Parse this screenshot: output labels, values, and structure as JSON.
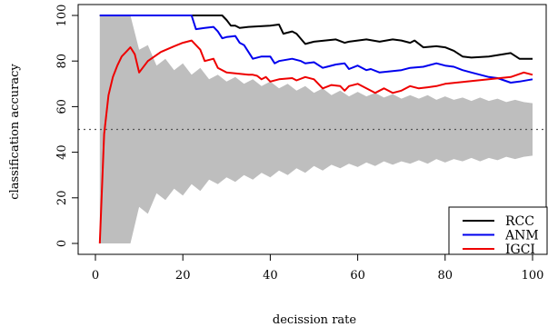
{
  "chart_data": {
    "type": "line",
    "xlabel": "decission rate",
    "ylabel": "classification accuracy",
    "xlim": [
      0,
      100
    ],
    "ylim": [
      0,
      100
    ],
    "x_ticks": [
      0,
      20,
      40,
      60,
      80,
      100
    ],
    "y_ticks": [
      0,
      20,
      40,
      60,
      80,
      100
    ],
    "grid": false,
    "legend_position": "bottom-right",
    "reference_line": {
      "y": 50,
      "style": "dotted",
      "color": "#555555"
    },
    "band": {
      "color": "#bebebe",
      "x": [
        1,
        2,
        4,
        6,
        7,
        8,
        10,
        12,
        14,
        16,
        18,
        20,
        22,
        24,
        26,
        28,
        30,
        32,
        34,
        36,
        38,
        40,
        42,
        44,
        46,
        48,
        50,
        52,
        54,
        56,
        58,
        60,
        62,
        64,
        66,
        68,
        70,
        72,
        74,
        76,
        78,
        80,
        82,
        84,
        86,
        88,
        90,
        92,
        94,
        96,
        98,
        100
      ],
      "upper": [
        100,
        100,
        100,
        100,
        100,
        100,
        85,
        87,
        78,
        81,
        76,
        79,
        74,
        77,
        72,
        74,
        71,
        73,
        70,
        72,
        69,
        71,
        68,
        70,
        67,
        69,
        66,
        68,
        65,
        67,
        64.5,
        66.5,
        64.5,
        66,
        64,
        65.5,
        63.5,
        65,
        63.5,
        65,
        63,
        64.5,
        63,
        64,
        62.5,
        64,
        62.5,
        63.5,
        62,
        63,
        62,
        61.5
      ],
      "lower": [
        0,
        0,
        0,
        0,
        0,
        0,
        16,
        13,
        22,
        19,
        24,
        21,
        26,
        23,
        28,
        26,
        29,
        27,
        30,
        28,
        31,
        29,
        32,
        30,
        33,
        31,
        34,
        32,
        34.5,
        33,
        35,
        33.5,
        35.5,
        34,
        36,
        34.5,
        36,
        35,
        36.5,
        35,
        37,
        35.5,
        37,
        36,
        37.5,
        36,
        37.5,
        36.5,
        38,
        37,
        38,
        38.5
      ]
    },
    "series": [
      {
        "name": "RCC",
        "color": "#000000",
        "x": [
          1,
          10,
          20,
          29,
          30,
          31,
          32,
          33,
          35,
          40,
          42,
          43,
          45,
          46,
          48,
          50,
          55,
          57,
          58,
          62,
          65,
          68,
          70,
          72,
          73,
          75,
          78,
          80,
          82,
          84,
          86,
          90,
          95,
          97,
          100
        ],
        "y": [
          100,
          100,
          100,
          100,
          98,
          95.5,
          95.5,
          94.5,
          95,
          95.5,
          96,
          92,
          93,
          92,
          87.5,
          88.5,
          89.5,
          88,
          88.5,
          89.5,
          88.5,
          89.5,
          89,
          88,
          89,
          86,
          86.5,
          86,
          84.5,
          82,
          81.5,
          82,
          83.5,
          81,
          81
        ]
      },
      {
        "name": "ANM",
        "color": "#0000ee",
        "x": [
          1,
          10,
          20,
          22,
          23,
          25,
          27,
          28,
          29,
          30,
          32,
          33,
          34,
          35,
          36,
          38,
          40,
          41,
          42,
          45,
          47,
          48,
          50,
          52,
          53,
          55,
          57,
          58,
          60,
          62,
          63,
          65,
          70,
          72,
          75,
          78,
          80,
          82,
          84,
          86,
          88,
          90,
          92,
          95,
          97,
          100
        ],
        "y": [
          100,
          100,
          100,
          100,
          94,
          94.5,
          95,
          93,
          90,
          90.5,
          91,
          88,
          87,
          84,
          81,
          82,
          82,
          79,
          80,
          81,
          80,
          79,
          79.5,
          77,
          77.5,
          78.5,
          79,
          76.5,
          78,
          76,
          76.5,
          75,
          76,
          77,
          77.5,
          79,
          78,
          77.5,
          76,
          75,
          74,
          73,
          72.5,
          70.5,
          71,
          72
        ]
      },
      {
        "name": "IGCI",
        "color": "#ee0000",
        "x": [
          1,
          2,
          3,
          4,
          5,
          6,
          7,
          8,
          9,
          10,
          12,
          15,
          18,
          20,
          22,
          24,
          25,
          27,
          28,
          30,
          35,
          36,
          37,
          38,
          39,
          40,
          42,
          45,
          46,
          48,
          50,
          52,
          54,
          56,
          57,
          58,
          60,
          62,
          64,
          66,
          68,
          70,
          72,
          74,
          76,
          78,
          80,
          85,
          90,
          95,
          98,
          100
        ],
        "y": [
          0,
          48,
          65,
          73,
          78,
          82,
          84,
          86,
          83,
          75,
          80,
          84,
          86.5,
          88,
          89,
          85,
          80,
          81,
          77,
          75,
          74,
          74,
          73.5,
          72,
          73,
          71,
          72,
          72.5,
          71.5,
          73,
          72,
          68,
          69.5,
          69,
          67,
          69,
          70,
          68,
          66,
          68,
          66,
          67,
          69,
          68,
          68.5,
          69,
          70,
          71,
          72,
          73,
          75,
          74
        ]
      }
    ]
  },
  "legend": {
    "items": [
      {
        "label": "RCC",
        "color": "#000000"
      },
      {
        "label": "ANM",
        "color": "#0000ee"
      },
      {
        "label": "IGCI",
        "color": "#ee0000"
      }
    ]
  }
}
